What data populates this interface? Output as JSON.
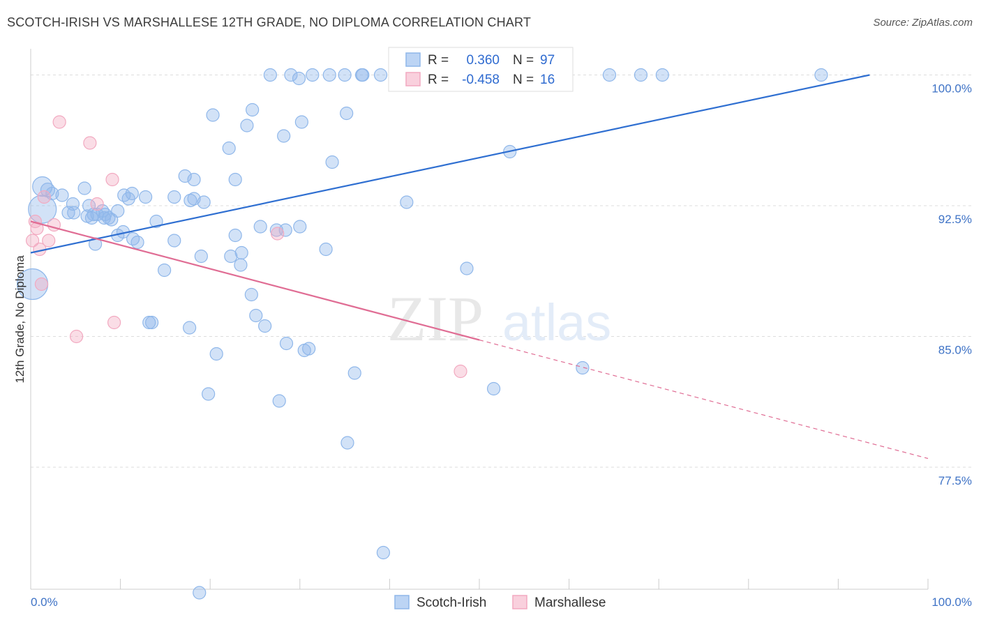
{
  "header": {
    "title": "SCOTCH-IRISH VS MARSHALLESE 12TH GRADE, NO DIPLOMA CORRELATION CHART",
    "source": "Source: ZipAtlas.com"
  },
  "watermark": {
    "part1": "ZIP",
    "part2": "atlas"
  },
  "colors": {
    "blue": "#8fb7ea",
    "blue_line": "#2f6fd1",
    "pink": "#f2a9c0",
    "pink_line": "#e06d94",
    "grid": "#dddddd",
    "tick_text": "#3f73c6"
  },
  "legend": {
    "rows": [
      {
        "r_label": "R =",
        "r_value": "0.360",
        "n_label": "N =",
        "n_value": "97",
        "color": "blue"
      },
      {
        "r_label": "R =",
        "r_value": "-0.458",
        "n_label": "N =",
        "n_value": "16",
        "color": "pink"
      }
    ],
    "bottom": [
      "Scotch-Irish",
      "Marshallese"
    ]
  },
  "chart_data": {
    "type": "scatter",
    "title": "SCOTCH-IRISH VS MARSHALLESE 12TH GRADE, NO DIPLOMA CORRELATION CHART",
    "xlabel": "",
    "ylabel": "12th Grade, No Diploma",
    "xlim": [
      0,
      100
    ],
    "ylim": [
      70.5,
      101.5
    ],
    "x_ticks": [
      "0.0%",
      "100.0%"
    ],
    "y_ticks": [
      {
        "value": 100.0,
        "label": "100.0%"
      },
      {
        "value": 92.5,
        "label": "92.5%"
      },
      {
        "value": 85.0,
        "label": "85.0%"
      },
      {
        "value": 77.5,
        "label": "77.5%"
      }
    ],
    "grid": true,
    "legend_position": "top-center",
    "series": [
      {
        "name": "Scotch-Irish",
        "color": "blue",
        "trend": {
          "x": [
            0,
            93.5
          ],
          "y": [
            89.8,
            100.0
          ]
        },
        "points": [
          [
            1.3,
            93.6,
            14
          ],
          [
            1.9,
            93.4,
            10
          ],
          [
            2.4,
            93.2,
            9
          ],
          [
            3.5,
            93.1,
            9
          ],
          [
            1.3,
            92.3,
            20
          ],
          [
            0.2,
            88.0,
            22
          ],
          [
            4.8,
            92.1,
            9
          ],
          [
            4.2,
            92.1,
            9
          ],
          [
            6.0,
            93.5,
            9
          ],
          [
            4.7,
            92.6,
            9
          ],
          [
            6.3,
            91.9,
            9
          ],
          [
            6.5,
            92.5,
            9
          ],
          [
            7.0,
            92.0,
            9
          ],
          [
            7.4,
            92.0,
            9
          ],
          [
            8.3,
            92.0,
            9
          ],
          [
            8.2,
            91.8,
            9
          ],
          [
            9.0,
            91.7,
            9
          ],
          [
            9.7,
            92.2,
            9
          ],
          [
            10.4,
            93.1,
            9
          ],
          [
            10.9,
            92.9,
            9
          ],
          [
            12.8,
            93.0,
            9
          ],
          [
            7.2,
            90.3,
            9
          ],
          [
            9.7,
            90.8,
            9
          ],
          [
            11.4,
            90.6,
            9
          ],
          [
            11.9,
            90.4,
            9
          ],
          [
            14.0,
            91.6,
            9
          ],
          [
            16.0,
            93.0,
            9
          ],
          [
            17.2,
            94.2,
            9
          ],
          [
            18.2,
            94.0,
            9
          ],
          [
            17.8,
            92.8,
            9
          ],
          [
            16.0,
            90.5,
            9
          ],
          [
            14.9,
            88.8,
            9
          ],
          [
            18.2,
            92.9,
            9
          ],
          [
            19.3,
            92.7,
            9
          ],
          [
            19.0,
            89.6,
            9
          ],
          [
            22.3,
            89.6,
            9
          ],
          [
            23.4,
            89.1,
            9
          ],
          [
            23.5,
            89.8,
            9
          ],
          [
            22.8,
            94.0,
            9
          ],
          [
            22.8,
            90.8,
            9
          ],
          [
            24.6,
            87.4,
            9
          ],
          [
            25.1,
            86.2,
            9
          ],
          [
            25.6,
            91.3,
            9
          ],
          [
            24.1,
            97.1,
            9
          ],
          [
            24.7,
            98.0,
            9
          ],
          [
            22.1,
            95.8,
            9
          ],
          [
            20.3,
            97.7,
            9
          ],
          [
            27.4,
            91.1,
            9
          ],
          [
            28.4,
            91.1,
            9
          ],
          [
            30.0,
            91.3,
            9
          ],
          [
            32.9,
            90.0,
            9
          ],
          [
            33.6,
            95.0,
            9
          ],
          [
            35.2,
            97.8,
            9
          ],
          [
            28.2,
            96.5,
            9
          ],
          [
            30.2,
            97.3,
            9
          ],
          [
            26.7,
            100.0,
            9
          ],
          [
            29.0,
            100.0,
            9
          ],
          [
            29.9,
            99.8,
            9
          ],
          [
            31.4,
            100.0,
            9
          ],
          [
            33.3,
            100.0,
            9
          ],
          [
            35.0,
            100.0,
            9
          ],
          [
            36.9,
            100.0,
            9
          ],
          [
            37.0,
            100.0,
            9
          ],
          [
            39.0,
            100.0,
            9
          ],
          [
            40.9,
            100.0,
            9
          ],
          [
            43.9,
            100.0,
            9
          ],
          [
            47.2,
            100.0,
            9
          ],
          [
            54.9,
            100.0,
            9
          ],
          [
            59.1,
            100.0,
            9
          ],
          [
            64.5,
            100.0,
            9
          ],
          [
            68.0,
            100.0,
            9
          ],
          [
            70.4,
            100.0,
            9
          ],
          [
            88.1,
            100.0,
            9
          ],
          [
            41.9,
            92.7,
            9
          ],
          [
            53.4,
            95.6,
            9
          ],
          [
            48.6,
            88.9,
            9
          ],
          [
            13.2,
            85.8,
            9
          ],
          [
            13.5,
            85.8,
            9
          ],
          [
            17.7,
            85.5,
            9
          ],
          [
            20.7,
            84.0,
            9
          ],
          [
            26.1,
            85.6,
            9
          ],
          [
            28.5,
            84.6,
            9
          ],
          [
            30.5,
            84.2,
            9
          ],
          [
            31.0,
            84.3,
            9
          ],
          [
            36.1,
            82.9,
            9
          ],
          [
            27.7,
            81.3,
            9
          ],
          [
            19.8,
            81.7,
            9
          ],
          [
            35.3,
            78.9,
            9
          ],
          [
            51.6,
            82.0,
            9
          ],
          [
            61.5,
            83.2,
            9
          ],
          [
            39.3,
            72.6,
            9
          ],
          [
            18.8,
            70.3,
            9
          ],
          [
            11.3,
            93.2,
            9
          ],
          [
            6.8,
            91.8,
            9
          ],
          [
            10.3,
            91.0,
            9
          ],
          [
            8.7,
            91.8,
            9
          ],
          [
            8.0,
            92.2,
            9
          ]
        ]
      },
      {
        "name": "Marshallese",
        "color": "pink",
        "trend": {
          "x": [
            0,
            50
          ],
          "y": [
            91.6,
            84.8
          ]
        },
        "trend_dashed": {
          "x": [
            50,
            100
          ],
          "y": [
            84.8,
            78.0
          ]
        },
        "points": [
          [
            1.5,
            93.0,
            9
          ],
          [
            3.2,
            97.3,
            9
          ],
          [
            6.6,
            96.1,
            9
          ],
          [
            9.1,
            94.0,
            9
          ],
          [
            7.4,
            92.6,
            9
          ],
          [
            0.5,
            91.6,
            9
          ],
          [
            0.7,
            91.2,
            9
          ],
          [
            2.6,
            91.4,
            9
          ],
          [
            0.2,
            90.5,
            9
          ],
          [
            2.0,
            90.5,
            9
          ],
          [
            1.0,
            90.0,
            9
          ],
          [
            1.2,
            88.0,
            9
          ],
          [
            9.3,
            85.8,
            9
          ],
          [
            5.1,
            85.0,
            9
          ],
          [
            27.5,
            90.9,
            9
          ],
          [
            47.9,
            83.0,
            9
          ]
        ]
      }
    ]
  }
}
